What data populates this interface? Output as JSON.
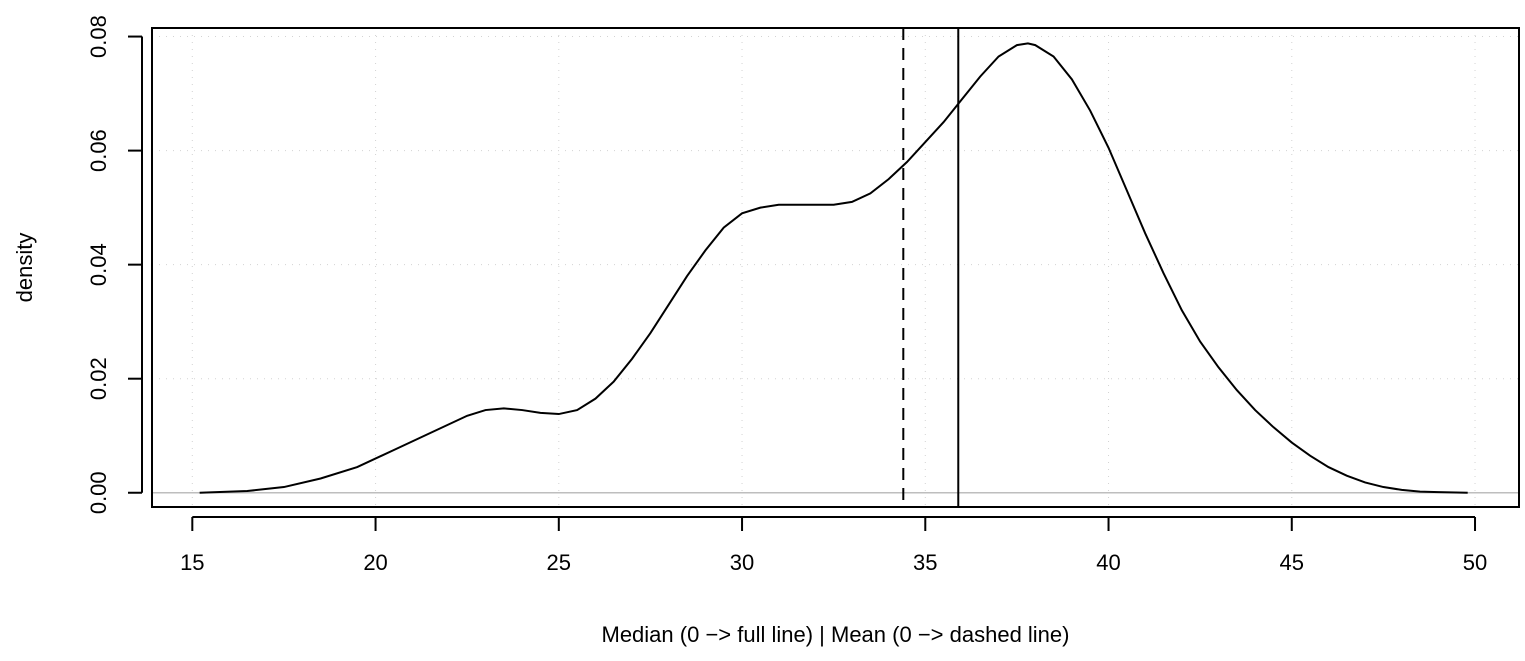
{
  "chart_data": {
    "type": "line",
    "xlabel": "Median (0 −> full line) | Mean (0 −> dashed line)",
    "ylabel": "density",
    "xlim": [
      13.9,
      51.2
    ],
    "ylim": [
      -0.0025,
      0.0815
    ],
    "x_ticks": [
      15,
      20,
      25,
      30,
      35,
      40,
      45,
      50
    ],
    "y_ticks": [
      0.0,
      0.02,
      0.04,
      0.06,
      0.08
    ],
    "x_tick_labels": [
      "15",
      "20",
      "25",
      "30",
      "35",
      "40",
      "45",
      "50"
    ],
    "y_tick_labels": [
      "0.00",
      "0.02",
      "0.04",
      "0.06",
      "0.08"
    ],
    "grid": true,
    "series": [
      {
        "x": [
          15.2,
          16.5,
          17.5,
          18.5,
          19.5,
          20.5,
          21.5,
          22.5,
          23.0,
          23.5,
          24.0,
          24.5,
          25.0,
          25.5,
          26.0,
          26.5,
          27.0,
          27.5,
          28.0,
          28.5,
          29.0,
          29.5,
          30.0,
          30.5,
          31.0,
          31.5,
          32.0,
          32.5,
          33.0,
          33.5,
          34.0,
          34.5,
          35.0,
          35.5,
          36.0,
          36.5,
          37.0,
          37.5,
          37.8,
          38.0,
          38.5,
          39.0,
          39.5,
          40.0,
          40.5,
          41.0,
          41.5,
          42.0,
          42.5,
          43.0,
          43.5,
          44.0,
          44.5,
          45.0,
          45.5,
          46.0,
          46.5,
          47.0,
          47.5,
          48.0,
          48.5,
          49.0,
          49.8
        ],
        "y": [
          0.0,
          0.0003,
          0.001,
          0.0025,
          0.0045,
          0.0075,
          0.0105,
          0.0135,
          0.0145,
          0.0148,
          0.0145,
          0.014,
          0.0138,
          0.0145,
          0.0165,
          0.0195,
          0.0235,
          0.028,
          0.033,
          0.038,
          0.0425,
          0.0465,
          0.049,
          0.05,
          0.0505,
          0.0505,
          0.0505,
          0.0505,
          0.051,
          0.0525,
          0.055,
          0.058,
          0.0615,
          0.065,
          0.069,
          0.073,
          0.0765,
          0.0785,
          0.0788,
          0.0785,
          0.0765,
          0.0725,
          0.067,
          0.0605,
          0.053,
          0.0455,
          0.0385,
          0.032,
          0.0265,
          0.022,
          0.018,
          0.0145,
          0.0115,
          0.0088,
          0.0065,
          0.0045,
          0.003,
          0.0018,
          0.001,
          0.0005,
          0.0002,
          0.0001,
          0.0
        ]
      }
    ],
    "vlines": [
      {
        "x": 35.9,
        "style": "solid"
      },
      {
        "x": 34.4,
        "style": "dashed"
      }
    ],
    "hline": {
      "y": 0.0,
      "color": "#bebebe"
    }
  }
}
